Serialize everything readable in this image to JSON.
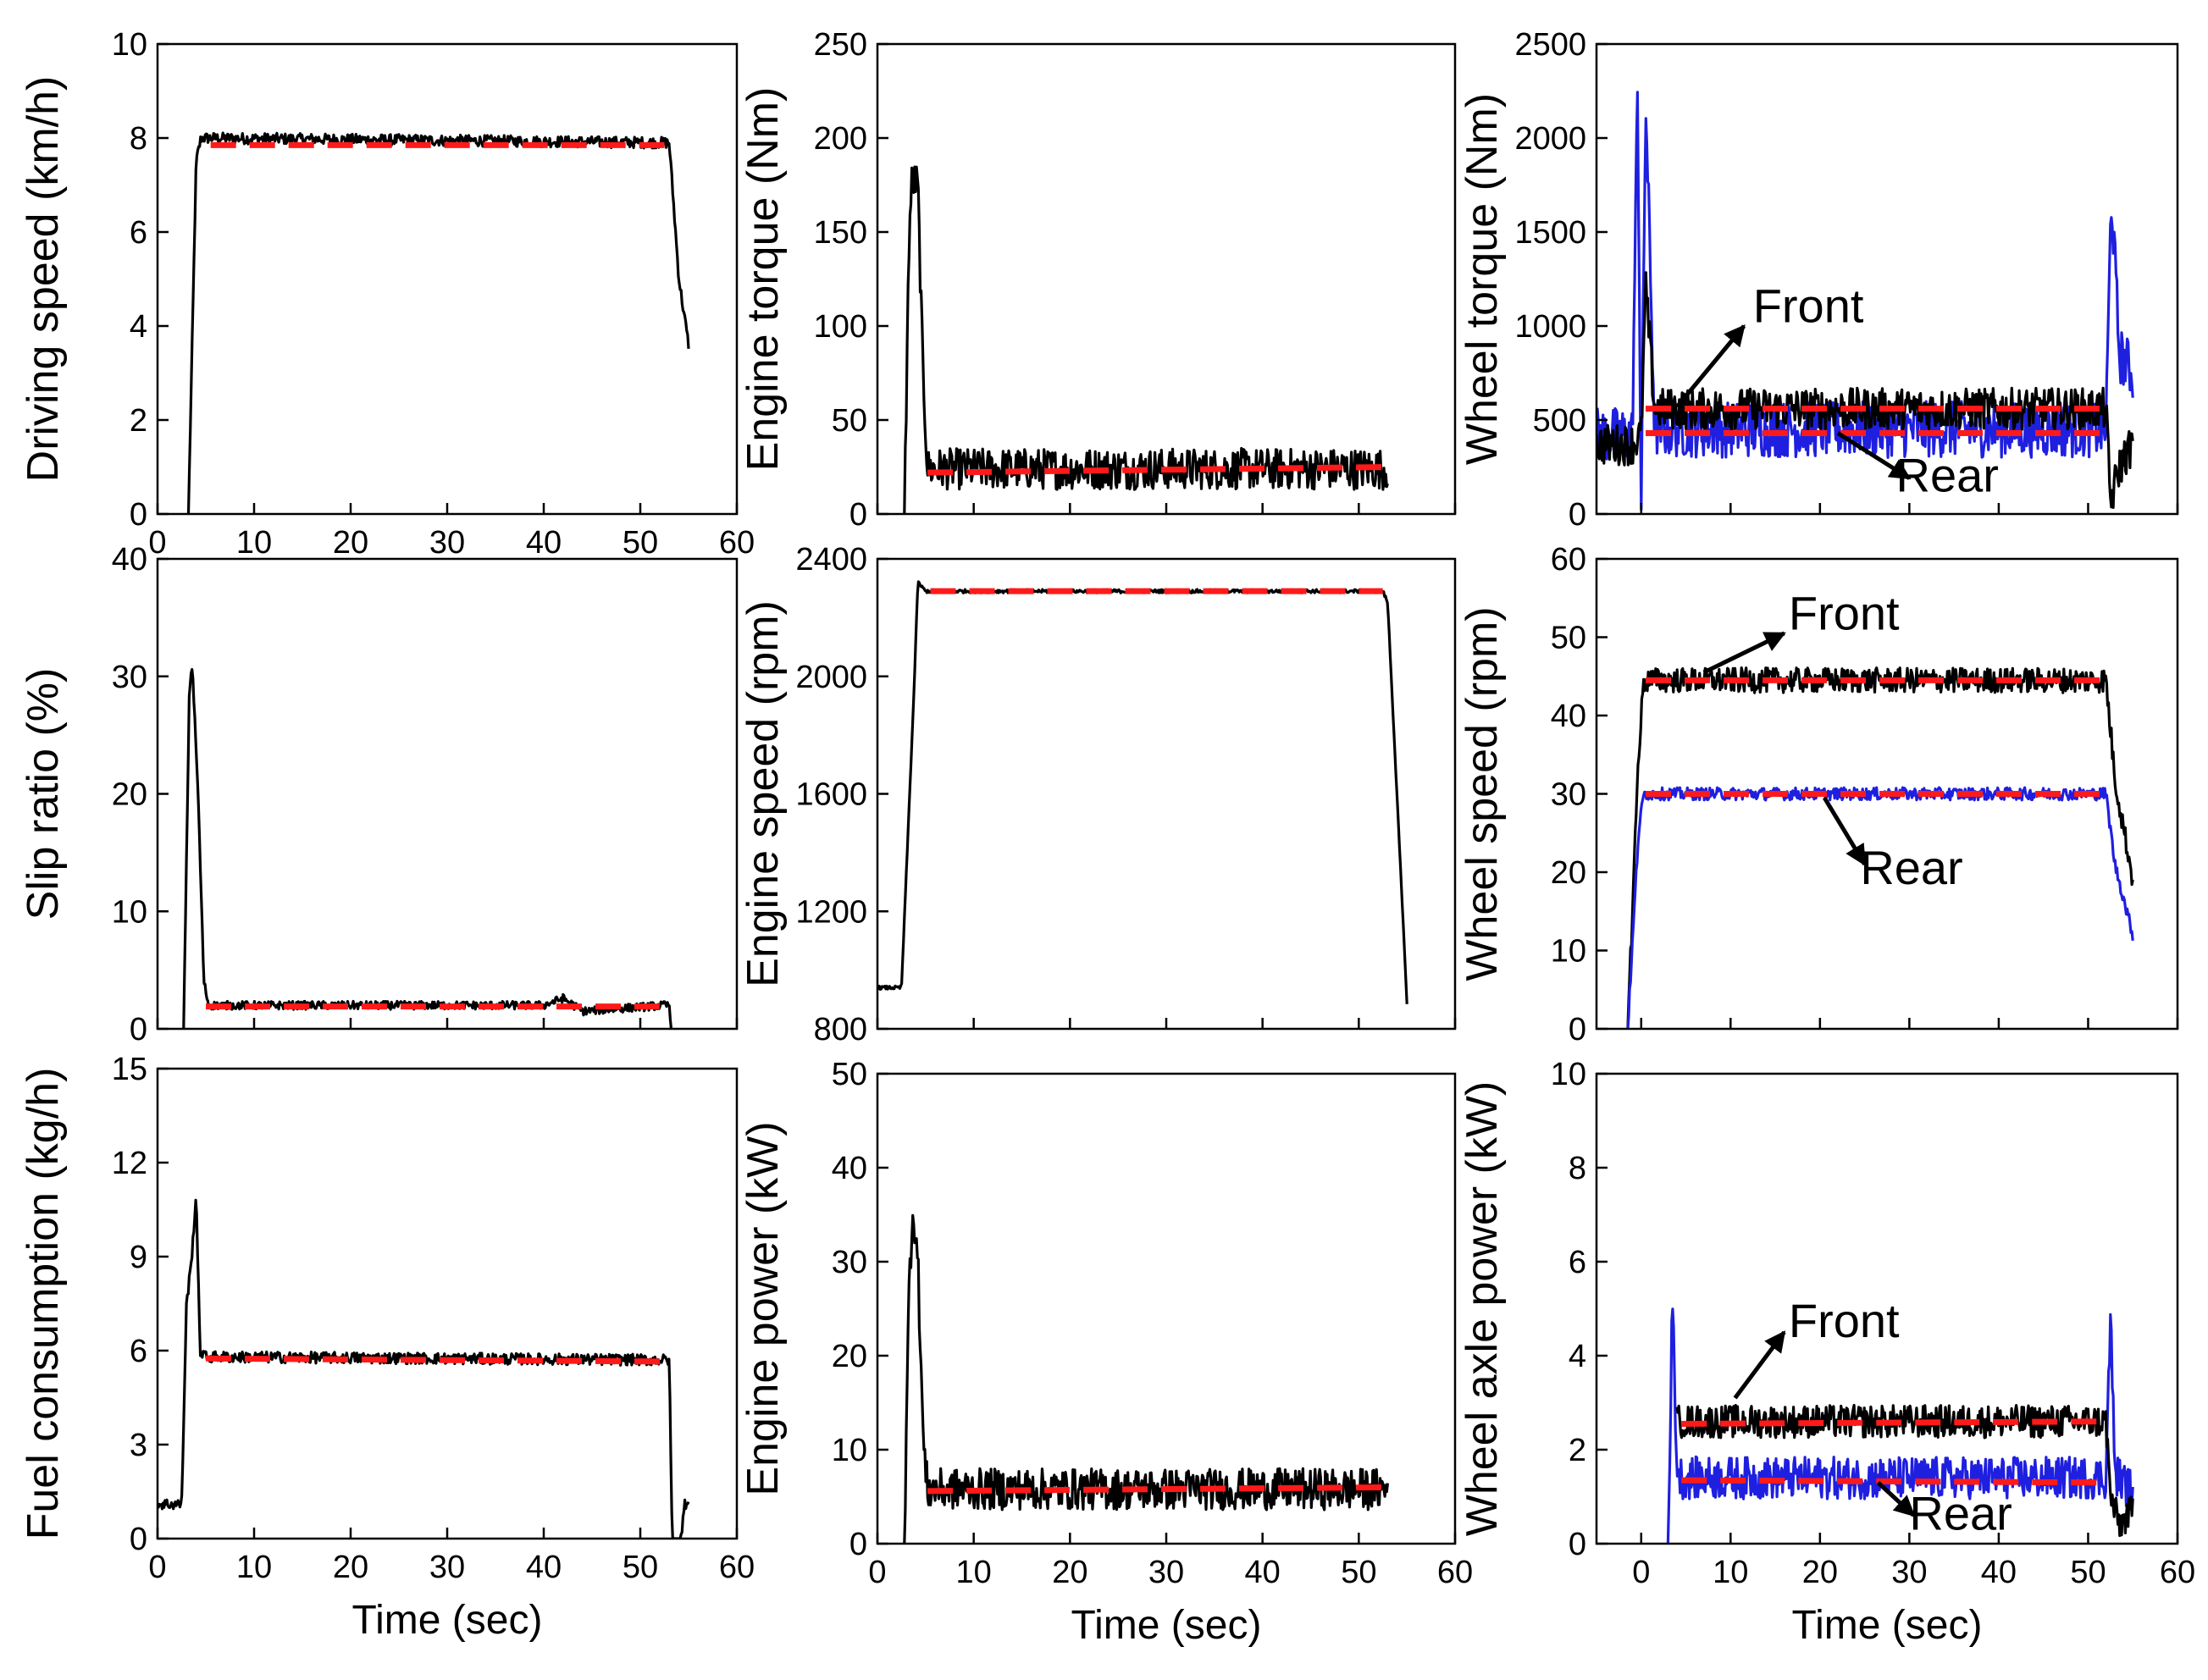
{
  "figure": {
    "panels": 9,
    "series_colors": {
      "measured": "#000000",
      "front": "#000000",
      "rear": "#1f1fe0",
      "average": "#ff1a1a"
    }
  },
  "chart_data": [
    {
      "id": "driving-speed",
      "type": "line",
      "xlabel": "",
      "ylabel": "Driving speed (km/h)",
      "xlim": [
        0,
        60
      ],
      "ylim": [
        0,
        10
      ],
      "xticks": [
        "0",
        "10",
        "20",
        "30",
        "40",
        "50",
        "60"
      ],
      "yticks": [
        "0",
        "2",
        "4",
        "6",
        "8",
        "10"
      ],
      "series": [
        {
          "name": "measured",
          "color": "#000000",
          "noise": 0.12,
          "xs": [
            3.2,
            4.0,
            4.5,
            53.0,
            54.0,
            55.0
          ],
          "ys": [
            0,
            7.5,
            8.0,
            7.9,
            5.0,
            3.6
          ]
        },
        {
          "name": "average",
          "color": "#ff1a1a",
          "dashed": true,
          "xs": [
            5.5,
            52.5
          ],
          "ys": [
            7.85,
            7.85
          ]
        }
      ]
    },
    {
      "id": "engine-torque",
      "type": "line",
      "xlabel": "",
      "ylabel": "Engine torque (Nm)",
      "xlim": [
        0,
        60
      ],
      "ylim": [
        0,
        250
      ],
      "xticks": [],
      "yticks": [
        "0",
        "50",
        "100",
        "150",
        "200",
        "250"
      ],
      "series": [
        {
          "name": "measured",
          "color": "#000000",
          "noise": 11,
          "xs": [
            2.8,
            3.3,
            3.6,
            4.2,
            4.7,
            5.2,
            53.0
          ],
          "ys": [
            0,
            150,
            178,
            175,
            80,
            24,
            24
          ]
        },
        {
          "name": "average",
          "color": "#ff1a1a",
          "dashed": true,
          "xs": [
            5.2,
            53.0
          ],
          "ys": [
            22,
            25
          ]
        }
      ]
    },
    {
      "id": "wheel-torque",
      "type": "line",
      "xlabel": "",
      "ylabel": "Wheel torque (Nm)",
      "xlim": [
        -5,
        60
      ],
      "ylim": [
        0,
        2500
      ],
      "xticks": [],
      "yticks": [
        "0",
        "500",
        "1000",
        "1500",
        "2000",
        "2500"
      ],
      "series": [
        {
          "name": "rear",
          "color": "#1f1fe0",
          "noise": 150,
          "xs": [
            -5,
            -1,
            -0.4,
            0,
            0.5,
            1.5,
            52.0,
            52.6,
            53.5,
            55.0
          ],
          "ys": [
            420,
            420,
            2280,
            40,
            2200,
            450,
            450,
            1700,
            850,
            750
          ]
        },
        {
          "name": "front",
          "color": "#000000",
          "noise": 110,
          "xs": [
            -5,
            -1,
            0,
            0.5,
            1.5,
            52.0,
            52.5,
            53.5,
            55.0
          ],
          "ys": [
            370,
            370,
            420,
            1200,
            560,
            560,
            60,
            250,
            380
          ]
        },
        {
          "name": "front-average",
          "color": "#ff1a1a",
          "dashed": true,
          "xs": [
            0.5,
            52.0
          ],
          "ys": [
            560,
            560
          ]
        },
        {
          "name": "rear-average",
          "color": "#ff1a1a",
          "dashed": true,
          "xs": [
            0.5,
            52.0
          ],
          "ys": [
            430,
            430
          ]
        }
      ],
      "annotations": [
        {
          "text": "Front",
          "x": 12.5,
          "y": 1020,
          "arrow_from": [
            11.5,
            1000
          ],
          "arrow_to": [
            4.0,
            570
          ]
        },
        {
          "text": "Rear",
          "x": 28.5,
          "y": 120,
          "arrow_from": [
            30.0,
            190
          ],
          "arrow_to": [
            22.0,
            430
          ]
        }
      ]
    },
    {
      "id": "slip-ratio",
      "type": "line",
      "xlabel": "",
      "ylabel": "Slip ratio (%)",
      "xlim": [
        0,
        60
      ],
      "ylim": [
        0,
        40
      ],
      "xticks": [],
      "yticks": [
        "0",
        "10",
        "20",
        "30",
        "40"
      ],
      "series": [
        {
          "name": "measured",
          "color": "#000000",
          "noise": 0.35,
          "xs": [
            2.7,
            3.3,
            3.6,
            4.2,
            4.8,
            5.3,
            40.0,
            42.0,
            44.0,
            52.5,
            53.0,
            53.2
          ],
          "ys": [
            0,
            29,
            31,
            20,
            4,
            2.0,
            2.0,
            2.6,
            1.5,
            2.0,
            2.0,
            0
          ]
        },
        {
          "name": "average",
          "color": "#ff1a1a",
          "dashed": true,
          "xs": [
            5.0,
            52.0
          ],
          "ys": [
            1.9,
            1.9
          ]
        }
      ]
    },
    {
      "id": "engine-speed",
      "type": "line",
      "xlabel": "",
      "ylabel": "Engine speed (rpm)",
      "xlim": [
        0,
        60
      ],
      "ylim": [
        800,
        2400
      ],
      "xticks": [],
      "yticks": [
        "800",
        "1200",
        "1600",
        "2000",
        "2400"
      ],
      "series": [
        {
          "name": "measured",
          "color": "#000000",
          "noise": 6,
          "xs": [
            0,
            2.5,
            3.8,
            4.2,
            5.0,
            52.5,
            53.0,
            55.0
          ],
          "ys": [
            940,
            940,
            1950,
            2320,
            2290,
            2290,
            2250,
            890
          ]
        },
        {
          "name": "average",
          "color": "#ff1a1a",
          "dashed": true,
          "xs": [
            5.5,
            52.5
          ],
          "ys": [
            2290,
            2290
          ]
        }
      ]
    },
    {
      "id": "wheel-speed",
      "type": "line",
      "xlabel": "",
      "ylabel": "Wheel speed (rpm)",
      "xlim": [
        -5,
        60
      ],
      "ylim": [
        0,
        60
      ],
      "xticks": [],
      "yticks": [
        "0",
        "10",
        "20",
        "30",
        "40",
        "50",
        "60"
      ],
      "series": [
        {
          "name": "front",
          "color": "#000000",
          "noise": 1.6,
          "xs": [
            -1.5,
            -0.3,
            0.3,
            1.0,
            52.0,
            53.0,
            55.0
          ],
          "ys": [
            0,
            35,
            44.5,
            44.5,
            44.5,
            32,
            19
          ]
        },
        {
          "name": "rear",
          "color": "#1f1fe0",
          "noise": 0.8,
          "xs": [
            -1.5,
            -0.3,
            0.3,
            1.0,
            52.0,
            53.0,
            55.0
          ],
          "ys": [
            0,
            25,
            30,
            30,
            30,
            21,
            12
          ]
        },
        {
          "name": "front-average",
          "color": "#ff1a1a",
          "dashed": true,
          "xs": [
            0.5,
            52.0
          ],
          "ys": [
            44.5,
            44.5
          ]
        },
        {
          "name": "rear-average",
          "color": "#ff1a1a",
          "dashed": true,
          "xs": [
            0.5,
            52.0
          ],
          "ys": [
            30,
            30
          ]
        }
      ],
      "annotations": [
        {
          "text": "Front",
          "x": 16.5,
          "y": 51,
          "arrow_from": [
            16.0,
            50.5
          ],
          "arrow_to": [
            7.0,
            45.5
          ]
        },
        {
          "text": "Rear",
          "x": 24.5,
          "y": 18.5,
          "arrow_from": [
            25.0,
            21.0
          ],
          "arrow_to": [
            20.5,
            29.5
          ]
        }
      ]
    },
    {
      "id": "fuel-consumption",
      "type": "line",
      "xlabel": "Time (sec)",
      "ylabel": "Fuel consumption (kg/h)",
      "xlim": [
        0,
        60
      ],
      "ylim": [
        0,
        15
      ],
      "xticks": [
        "0",
        "10",
        "20",
        "30",
        "40",
        "50",
        "60"
      ],
      "yticks": [
        "0",
        "3",
        "6",
        "9",
        "12",
        "15"
      ],
      "series": [
        {
          "name": "measured",
          "color": "#000000",
          "noise": 0.18,
          "xs": [
            0,
            2.5,
            3.0,
            3.5,
            4.0,
            4.4,
            5.0,
            53.0,
            53.3,
            54.2,
            54.6,
            55.0
          ],
          "ys": [
            1.1,
            1.1,
            7.5,
            8.8,
            11.0,
            6.0,
            5.8,
            5.7,
            0,
            0,
            1.1,
            1.2
          ]
        },
        {
          "name": "average",
          "color": "#ff1a1a",
          "dashed": true,
          "xs": [
            5.0,
            52.5
          ],
          "ys": [
            5.75,
            5.65
          ]
        }
      ]
    },
    {
      "id": "engine-power",
      "type": "line",
      "xlabel": "Time (sec)",
      "ylabel": "Engine power (kW)",
      "xlim": [
        0,
        60
      ],
      "ylim": [
        0,
        50
      ],
      "xticks": [
        "0",
        "10",
        "20",
        "30",
        "40",
        "50",
        "60"
      ],
      "yticks": [
        "0",
        "10",
        "20",
        "30",
        "40",
        "50"
      ],
      "series": [
        {
          "name": "measured",
          "color": "#000000",
          "noise": 2.2,
          "xs": [
            2.8,
            3.3,
            3.7,
            4.2,
            4.8,
            5.2,
            53.0
          ],
          "ys": [
            0,
            28,
            36,
            30,
            10,
            5.8,
            5.8
          ]
        },
        {
          "name": "average",
          "color": "#ff1a1a",
          "dashed": true,
          "xs": [
            5.2,
            53.0
          ],
          "ys": [
            5.6,
            6.0
          ]
        }
      ]
    },
    {
      "id": "wheel-axle-power",
      "type": "line",
      "xlabel": "Time (sec)",
      "ylabel": "Wheel axle power (kW)",
      "xlim": [
        -5,
        60
      ],
      "ylim": [
        0,
        10
      ],
      "xticks": [
        "0",
        "10",
        "20",
        "30",
        "40",
        "50",
        "60"
      ],
      "yticks": [
        "0",
        "2",
        "4",
        "6",
        "8",
        "10"
      ],
      "series": [
        {
          "name": "rear",
          "color": "#1f1fe0",
          "noise": 0.45,
          "xs": [
            3.0,
            3.5,
            4.0,
            4.5,
            52.0,
            52.5,
            53.0,
            55.0
          ],
          "ys": [
            0,
            5.2,
            1.6,
            1.4,
            1.4,
            4.9,
            1.5,
            1.1
          ]
        },
        {
          "name": "front",
          "color": "#000000",
          "noise": 0.35,
          "xs": [
            4.0,
            4.5,
            52.0,
            52.5,
            53.5,
            55.0
          ],
          "ys": [
            2.6,
            2.6,
            2.6,
            1.0,
            0.4,
            0.7
          ]
        },
        {
          "name": "front-average",
          "color": "#ff1a1a",
          "dashed": true,
          "xs": [
            4.5,
            52.0
          ],
          "ys": [
            2.55,
            2.6
          ]
        },
        {
          "name": "rear-average",
          "color": "#ff1a1a",
          "dashed": true,
          "xs": [
            4.5,
            52.0
          ],
          "ys": [
            1.35,
            1.3
          ]
        }
      ],
      "annotations": [
        {
          "text": "Front",
          "x": 16.5,
          "y": 4.4,
          "arrow_from": [
            16.0,
            4.5
          ],
          "arrow_to": [
            10.5,
            3.1
          ]
        },
        {
          "text": "Rear",
          "x": 30.0,
          "y": 0.3,
          "arrow_from": [
            30.5,
            0.6
          ],
          "arrow_to": [
            26.5,
            1.3
          ]
        }
      ]
    }
  ]
}
